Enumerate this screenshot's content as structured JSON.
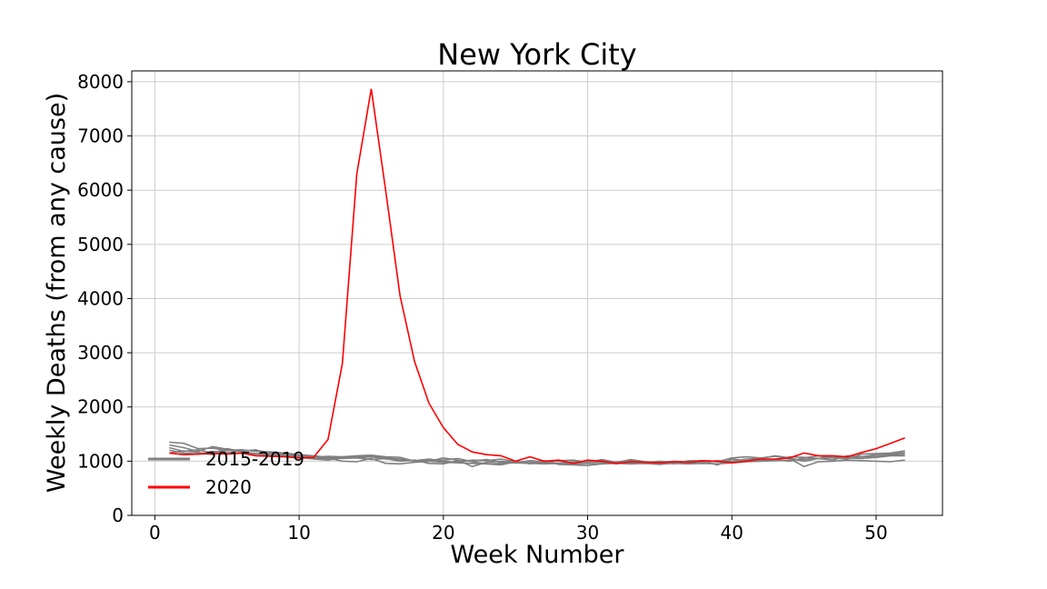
{
  "chart_data": {
    "type": "line",
    "title": "New York City",
    "xlabel": "Week Number",
    "ylabel": "Weekly Deaths (from any cause)",
    "xlim": [
      -1.6,
      54.6
    ],
    "ylim": [
      0,
      8200
    ],
    "xticks": [
      0,
      10,
      20,
      30,
      40,
      50
    ],
    "yticks": [
      0,
      1000,
      2000,
      3000,
      4000,
      5000,
      6000,
      7000,
      8000
    ],
    "grid": true,
    "legend": {
      "placement": "lower-left",
      "entries": [
        {
          "label": "2015-2019",
          "color": "#808080"
        },
        {
          "label": "2020",
          "color": "#ff0000"
        }
      ]
    },
    "background_series": [
      {
        "group": "2015-2019",
        "color": "#808080",
        "x": [
          1,
          2,
          3,
          4,
          5,
          6,
          7,
          8,
          9,
          10,
          11,
          12,
          13,
          14,
          15,
          16,
          17,
          18,
          19,
          20,
          21,
          22,
          23,
          24,
          25,
          26,
          27,
          28,
          29,
          30,
          31,
          32,
          33,
          34,
          35,
          36,
          37,
          38,
          39,
          40,
          41,
          42,
          43,
          44,
          45,
          46,
          47,
          48,
          49,
          50,
          51,
          52
        ],
        "values": [
          1350,
          1330,
          1230,
          1240,
          1200,
          1210,
          1180,
          1170,
          1150,
          1120,
          1100,
          1070,
          1050,
          1060,
          1080,
          1040,
          1030,
          1010,
          1000,
          980,
          970,
          960,
          950,
          960,
          970,
          960,
          950,
          960,
          950,
          960,
          950,
          960,
          950,
          960,
          950,
          960,
          950,
          960,
          950,
          970,
          990,
          1000,
          1010,
          1020,
          1030,
          1050,
          1060,
          1070,
          1080,
          1090,
          1110,
          1130
        ]
      },
      {
        "group": "2015-2019",
        "color": "#808080",
        "x": [
          1,
          2,
          3,
          4,
          5,
          6,
          7,
          8,
          9,
          10,
          11,
          12,
          13,
          14,
          15,
          16,
          17,
          18,
          19,
          20,
          21,
          22,
          23,
          24,
          25,
          26,
          27,
          28,
          29,
          30,
          31,
          32,
          33,
          34,
          35,
          36,
          37,
          38,
          39,
          40,
          41,
          42,
          43,
          44,
          45,
          46,
          47,
          48,
          49,
          50,
          51,
          52
        ],
        "values": [
          1300,
          1250,
          1180,
          1270,
          1220,
          1190,
          1200,
          1160,
          1130,
          1110,
          1080,
          1060,
          1000,
          990,
          1050,
          960,
          950,
          980,
          1000,
          1060,
          1020,
          900,
          980,
          1000,
          970,
          1010,
          990,
          1000,
          960,
          990,
          1010,
          980,
          1030,
          990,
          970,
          1000,
          990,
          980,
          1010,
          1000,
          1040,
          1050,
          1100,
          1060,
          1000,
          1050,
          1020,
          1100,
          1080,
          1120,
          1130,
          1160
        ]
      },
      {
        "group": "2015-2019",
        "color": "#808080",
        "x": [
          1,
          2,
          3,
          4,
          5,
          6,
          7,
          8,
          9,
          10,
          11,
          12,
          13,
          14,
          15,
          16,
          17,
          18,
          19,
          20,
          21,
          22,
          23,
          24,
          25,
          26,
          27,
          28,
          29,
          30,
          31,
          32,
          33,
          34,
          35,
          36,
          37,
          38,
          39,
          40,
          41,
          42,
          43,
          44,
          45,
          46,
          47,
          48,
          49,
          50,
          51,
          52
        ],
        "values": [
          1250,
          1180,
          1210,
          1150,
          1230,
          1180,
          1210,
          1120,
          1100,
          1090,
          1070,
          1090,
          1080,
          1100,
          1110,
          1080,
          1070,
          1000,
          1030,
          1020,
          1050,
          990,
          950,
          930,
          990,
          960,
          980,
          1010,
          1020,
          980,
          1030,
          980,
          970,
          960,
          940,
          970,
          1000,
          1010,
          990,
          1060,
          1080,
          1060,
          1090,
          1050,
          900,
          990,
          1000,
          1020,
          1010,
          1000,
          990,
          1020
        ]
      },
      {
        "group": "2015-2019",
        "color": "#808080",
        "x": [
          1,
          2,
          3,
          4,
          5,
          6,
          7,
          8,
          9,
          10,
          11,
          12,
          13,
          14,
          15,
          16,
          17,
          18,
          19,
          20,
          21,
          22,
          23,
          24,
          25,
          26,
          27,
          28,
          29,
          30,
          31,
          32,
          33,
          34,
          35,
          36,
          37,
          38,
          39,
          40,
          41,
          42,
          43,
          44,
          45,
          46,
          47,
          48,
          49,
          50,
          51,
          52
        ],
        "values": [
          1200,
          1150,
          1130,
          1180,
          1160,
          1140,
          1130,
          1110,
          1090,
          1080,
          1060,
          1040,
          1080,
          1060,
          1030,
          1050,
          1000,
          1020,
          960,
          950,
          1010,
          1000,
          1030,
          980,
          1000,
          950,
          1010,
          940,
          930,
          920,
          950,
          990,
          1000,
          980,
          990,
          950,
          1010,
          1000,
          930,
          1040,
          1010,
          1040,
          1030,
          1000,
          1060,
          1100,
          1060,
          1040,
          1130,
          1140,
          1150,
          1190
        ]
      },
      {
        "group": "2015-2019",
        "color": "#808080",
        "x": [
          1,
          2,
          3,
          4,
          5,
          6,
          7,
          8,
          9,
          10,
          11,
          12,
          13,
          14,
          15,
          16,
          17,
          18,
          19,
          20,
          21,
          22,
          23,
          24,
          25,
          26,
          27,
          28,
          29,
          30,
          31,
          32,
          33,
          34,
          35,
          36,
          37,
          38,
          39,
          40,
          41,
          42,
          43,
          44,
          45,
          46,
          47,
          48,
          49,
          50,
          51,
          52
        ],
        "values": [
          1150,
          1190,
          1160,
          1120,
          1200,
          1170,
          1140,
          1150,
          1100,
          1070,
          1040,
          1020,
          1060,
          1080,
          1090,
          1060,
          1040,
          1010,
          1040,
          1000,
          980,
          1020,
          1010,
          1040,
          990,
          990,
          970,
          950,
          990,
          990,
          980,
          950,
          1010,
          970,
          1000,
          980,
          960,
          1000,
          990,
          980,
          1000,
          1010,
          1020,
          1080,
          1070,
          1050,
          1090,
          1060,
          1050,
          1070,
          1100,
          1100
        ]
      }
    ],
    "highlight_series": {
      "name": "2020",
      "color": "#ff0000",
      "x": [
        1,
        2,
        3,
        4,
        5,
        6,
        7,
        8,
        9,
        10,
        11,
        12,
        13,
        14,
        15,
        16,
        17,
        18,
        19,
        20,
        21,
        22,
        23,
        24,
        25,
        26,
        27,
        28,
        29,
        30,
        31,
        32,
        33,
        34,
        35,
        36,
        37,
        38,
        39,
        40,
        41,
        42,
        43,
        44,
        45,
        46,
        47,
        48,
        49,
        50,
        51,
        52
      ],
      "values": [
        1150,
        1120,
        1130,
        1140,
        1130,
        1150,
        1100,
        1090,
        1080,
        1060,
        1070,
        1400,
        2800,
        6300,
        7870,
        6000,
        4050,
        2840,
        2070,
        1620,
        1310,
        1170,
        1120,
        1100,
        1000,
        1080,
        1000,
        1020,
        960,
        1020,
        1000,
        960,
        990,
        980,
        970,
        990,
        980,
        1010,
        1000,
        970,
        1000,
        1040,
        1040,
        1060,
        1150,
        1100,
        1100,
        1080,
        1160,
        1230,
        1330,
        1430
      ]
    }
  }
}
